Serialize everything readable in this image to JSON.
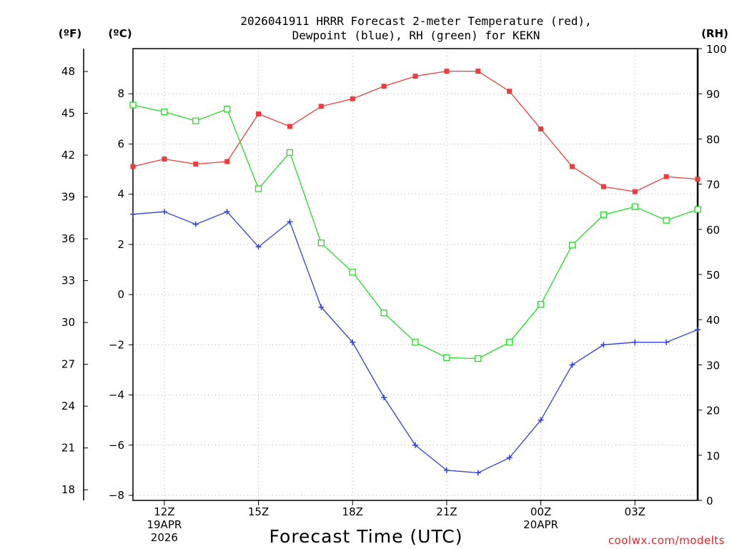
{
  "chart_data": {
    "type": "line",
    "title_line1": "2026041911 HRRR Forecast 2-meter Temperature (red),",
    "title_line2": "Dewpoint (blue), RH (green) for KEKN",
    "xlabel": "Forecast Time (UTC)",
    "credit": "coolwx.com/modelts",
    "units": {
      "fahrenheit": "(ºF)",
      "celsius": "(ºC)",
      "rh": "(RH)"
    },
    "x_hours": [
      11,
      12,
      13,
      14,
      15,
      16,
      17,
      18,
      19,
      20,
      21,
      22,
      23,
      24,
      25,
      26,
      27,
      28,
      29
    ],
    "xlim": [
      11,
      29
    ],
    "x_ticks": [
      {
        "hour": 12,
        "lines": [
          "12Z",
          "19APR",
          "2026"
        ]
      },
      {
        "hour": 15,
        "lines": [
          "15Z"
        ]
      },
      {
        "hour": 18,
        "lines": [
          "18Z"
        ]
      },
      {
        "hour": 21,
        "lines": [
          "21Z"
        ]
      },
      {
        "hour": 24,
        "lines": [
          "00Z",
          "20APR"
        ]
      },
      {
        "hour": 27,
        "lines": [
          "03Z"
        ]
      }
    ],
    "celsius_axis": {
      "ylim": [
        -8.2,
        9.8
      ],
      "ticks": [
        8,
        6,
        4,
        2,
        0,
        -2,
        -4,
        -6,
        -8
      ],
      "labels": [
        "8",
        "6",
        "4",
        "2",
        "0",
        "−2",
        "−4",
        "−6",
        "−8"
      ]
    },
    "fahrenheit_ticks": [
      48,
      45,
      42,
      39,
      36,
      33,
      30,
      27,
      24,
      21,
      18
    ],
    "rh_axis": {
      "ylim": [
        0,
        100
      ],
      "ticks": [
        100,
        90,
        80,
        70,
        60,
        50,
        40,
        30,
        20,
        10,
        0
      ]
    },
    "series": [
      {
        "name": "Temperature",
        "axis": "celsius",
        "color": "#ee3b3b",
        "marker": "filled-square",
        "values": [
          5.1,
          5.4,
          5.2,
          5.3,
          7.2,
          6.7,
          7.5,
          7.8,
          8.3,
          8.7,
          8.9,
          8.9,
          8.1,
          6.6,
          5.1,
          4.3,
          4.1,
          4.7,
          4.6
        ]
      },
      {
        "name": "Dewpoint",
        "axis": "celsius",
        "color": "#2f3fe0",
        "marker": "plus",
        "values": [
          3.2,
          3.3,
          2.8,
          3.3,
          1.9,
          2.9,
          -0.5,
          -1.9,
          -4.1,
          -6.0,
          -7.0,
          -7.1,
          -6.5,
          -5.0,
          -2.8,
          -2.0,
          -1.9,
          -1.9,
          -1.4
        ]
      },
      {
        "name": "RH",
        "axis": "rh",
        "color": "#22dd22",
        "marker": "open-square",
        "values": [
          87.5,
          86,
          84,
          86.6,
          69,
          77,
          57,
          50.5,
          41.5,
          35,
          31.6,
          31.4,
          35,
          43.4,
          56.5,
          63.2,
          65,
          62,
          64.4
        ]
      }
    ]
  }
}
